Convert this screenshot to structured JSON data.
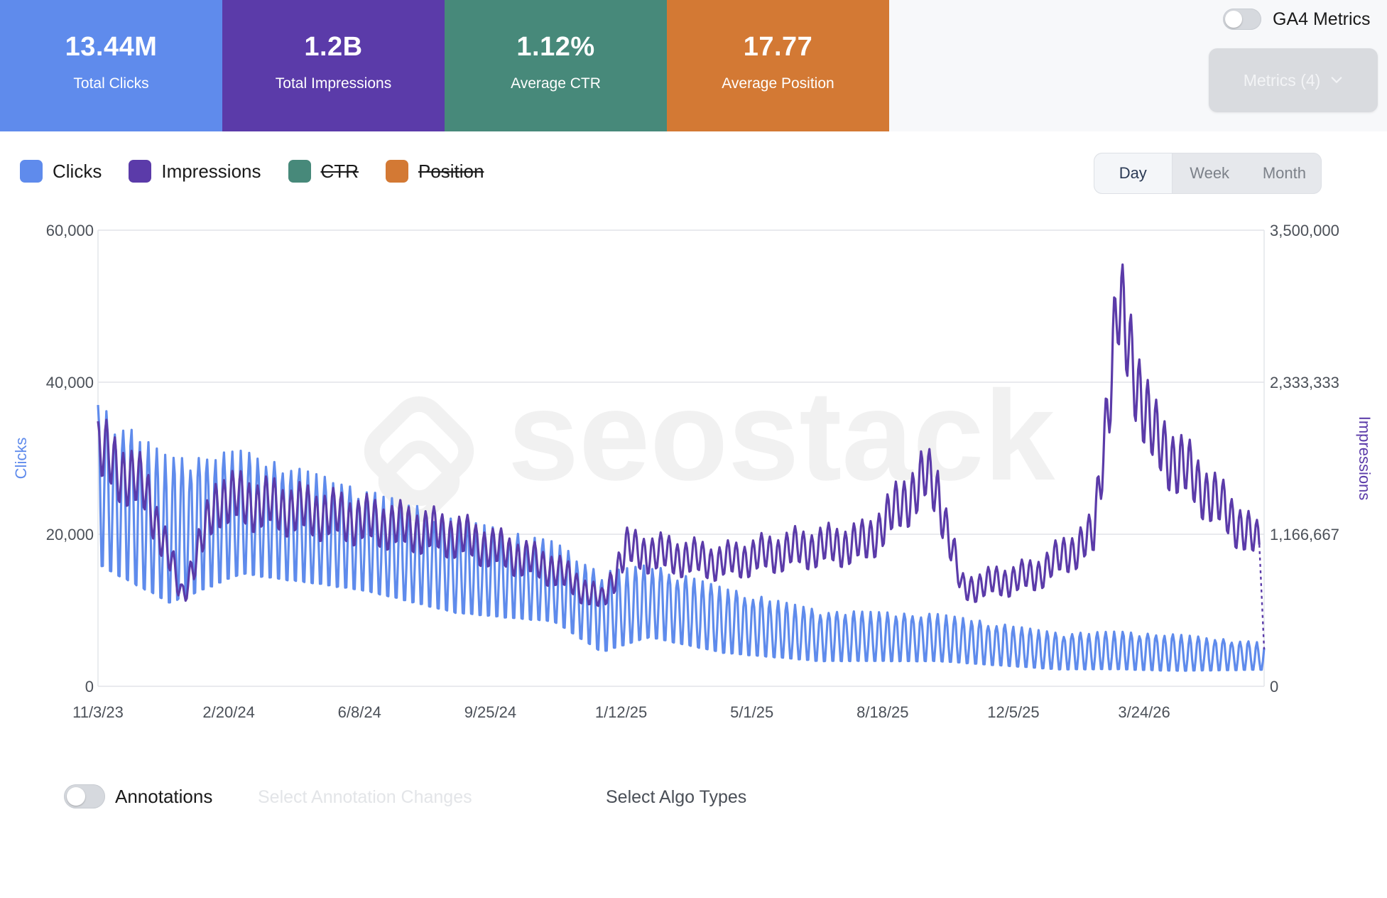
{
  "kpis": [
    {
      "value": "13.44M",
      "label": "Total Clicks",
      "color": "#5f8bec"
    },
    {
      "value": "1.2B",
      "label": "Total Impressions",
      "color": "#5b3ba9"
    },
    {
      "value": "1.12%",
      "label": "Average CTR",
      "color": "#47897a"
    },
    {
      "value": "17.77",
      "label": "Average Position",
      "color": "#d37934"
    }
  ],
  "ga4": {
    "label": "GA4 Metrics",
    "enabled": false
  },
  "metrics_dropdown": {
    "label": "Metrics (4)",
    "icon": "chevron-down-icon"
  },
  "legend": [
    {
      "label": "Clicks",
      "color": "#5f8bec",
      "active": true
    },
    {
      "label": "Impressions",
      "color": "#5b3ba9",
      "active": true
    },
    {
      "label": "CTR",
      "color": "#47897a",
      "active": false
    },
    {
      "label": "Position",
      "color": "#d37934",
      "active": false
    }
  ],
  "granularity": {
    "options": [
      "Day",
      "Week",
      "Month"
    ],
    "selected": "Day"
  },
  "watermark": "seostack",
  "chart_data": {
    "type": "line",
    "x_ticks": [
      "11/3/23",
      "2/20/24",
      "6/8/24",
      "9/25/24",
      "1/12/25",
      "5/1/25",
      "8/18/25",
      "12/5/25",
      "3/24/26"
    ],
    "x_range": [
      "2023-11-03",
      "2026-07-02"
    ],
    "y_left": {
      "label": "Clicks",
      "range": [
        0,
        60000
      ],
      "ticks": [
        "0",
        "20,000",
        "40,000",
        "60,000"
      ]
    },
    "y_right": {
      "label": "Impressions",
      "range": [
        0,
        3500000
      ],
      "ticks": [
        "0",
        "1,166,667",
        "2,333,333",
        "3,500,000"
      ]
    },
    "grid": true,
    "series": [
      {
        "name": "Clicks",
        "axis": "left",
        "color": "#5f8bec",
        "date_start": "2023-11-03",
        "date_end": "2026-07-02",
        "peaks": [
          [
            0,
            37000
          ],
          [
            60,
            30000
          ],
          [
            120,
            31000
          ],
          [
            220,
            26000
          ],
          [
            300,
            22000
          ],
          [
            380,
            19000
          ],
          [
            420,
            15000
          ],
          [
            460,
            16000
          ],
          [
            520,
            13000
          ],
          [
            600,
            10000
          ],
          [
            700,
            9500
          ],
          [
            800,
            7000
          ],
          [
            850,
            7200
          ],
          [
            900,
            6800
          ],
          [
            966,
            5800
          ]
        ],
        "troughs": [
          [
            0,
            15000
          ],
          [
            60,
            10000
          ],
          [
            120,
            14000
          ],
          [
            220,
            12000
          ],
          [
            300,
            9000
          ],
          [
            380,
            8000
          ],
          [
            420,
            4000
          ],
          [
            460,
            6000
          ],
          [
            520,
            4000
          ],
          [
            600,
            3000
          ],
          [
            700,
            3000
          ],
          [
            800,
            2000
          ],
          [
            850,
            2000
          ],
          [
            900,
            1800
          ],
          [
            966,
            2000
          ]
        ]
      },
      {
        "name": "Impressions",
        "axis": "right",
        "color": "#5b3ba9",
        "date_start": "2023-11-03",
        "date_end": "2026-07-02",
        "trend": [
          [
            0,
            1800000
          ],
          [
            40,
            1500000
          ],
          [
            70,
            700000
          ],
          [
            100,
            1450000
          ],
          [
            200,
            1300000
          ],
          [
            300,
            1150000
          ],
          [
            380,
            900000
          ],
          [
            420,
            650000
          ],
          [
            440,
            1050000
          ],
          [
            520,
            950000
          ],
          [
            580,
            1050000
          ],
          [
            640,
            1100000
          ],
          [
            690,
            1600000
          ],
          [
            700,
            1500000
          ],
          [
            720,
            750000
          ],
          [
            780,
            850000
          ],
          [
            830,
            1150000
          ],
          [
            850,
            2900000
          ],
          [
            880,
            1900000
          ],
          [
            950,
            1250000
          ],
          [
            966,
            1100000
          ]
        ]
      }
    ]
  },
  "annotations": {
    "label": "Annotations",
    "enabled": false
  },
  "annotation_select": {
    "placeholder": "Select Annotation Changes"
  },
  "algo_select": {
    "placeholder": "Select Algo Types"
  }
}
